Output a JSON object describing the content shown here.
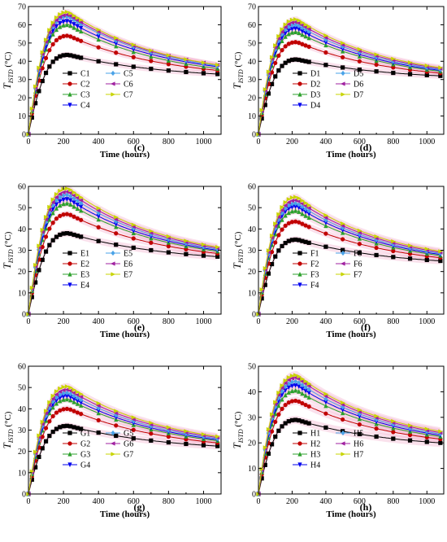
{
  "chart_data": [
    {
      "type": "line",
      "panel": "(c)",
      "xlabel": "Time (hours)",
      "ylabel_main": "T",
      "ylabel_sub": "ISTD",
      "ylabel_unit": " (°C)",
      "xlim": [
        0,
        1100
      ],
      "ylim": [
        0,
        70
      ],
      "xticks": [
        0,
        200,
        400,
        600,
        800,
        1000
      ],
      "yticks": [
        0,
        10,
        20,
        30,
        40,
        50,
        60,
        70
      ],
      "x": [
        0,
        20,
        40,
        60,
        80,
        100,
        120,
        140,
        160,
        180,
        200,
        220,
        240,
        260,
        280,
        300,
        400,
        500,
        600,
        700,
        800,
        900,
        1000,
        1080
      ],
      "series": [
        {
          "name": "C1",
          "peak": 43.5,
          "end": 33
        },
        {
          "name": "C2",
          "peak": 54,
          "end": 35
        },
        {
          "name": "C3",
          "peak": 60,
          "end": 36
        },
        {
          "name": "C4",
          "peak": 62,
          "end": 37
        },
        {
          "name": "C5",
          "peak": 64.5,
          "end": 37.5
        },
        {
          "name": "C6",
          "peak": 65.5,
          "end": 38
        },
        {
          "name": "C7",
          "peak": 67,
          "end": 38
        }
      ]
    },
    {
      "type": "line",
      "panel": "(d)",
      "xlabel": "Time (hours)",
      "ylabel_main": "T",
      "ylabel_sub": "ISTD",
      "ylabel_unit": " (°C)",
      "xlim": [
        0,
        1100
      ],
      "ylim": [
        0,
        70
      ],
      "xticks": [
        0,
        200,
        400,
        600,
        800,
        1000
      ],
      "yticks": [
        0,
        10,
        20,
        30,
        40,
        50,
        60,
        70
      ],
      "x": [
        0,
        20,
        40,
        60,
        80,
        100,
        120,
        140,
        160,
        180,
        200,
        220,
        240,
        260,
        280,
        300,
        400,
        500,
        600,
        700,
        800,
        900,
        1000,
        1080
      ],
      "series": [
        {
          "name": "D1",
          "peak": 41,
          "end": 32
        },
        {
          "name": "D2",
          "peak": 50.5,
          "end": 33.5
        },
        {
          "name": "D3",
          "peak": 56,
          "end": 34.5
        },
        {
          "name": "D4",
          "peak": 58,
          "end": 35
        },
        {
          "name": "D5",
          "peak": 60,
          "end": 35.5
        },
        {
          "name": "D6",
          "peak": 61.5,
          "end": 36
        },
        {
          "name": "D7",
          "peak": 63,
          "end": 36.5
        }
      ]
    },
    {
      "type": "line",
      "panel": "(e)",
      "xlabel": "Time (hours)",
      "ylabel_main": "T",
      "ylabel_sub": "ISTD",
      "ylabel_unit": " (°C)",
      "xlim": [
        0,
        1100
      ],
      "ylim": [
        0,
        60
      ],
      "xticks": [
        0,
        200,
        400,
        600,
        800,
        1000
      ],
      "yticks": [
        0,
        10,
        20,
        30,
        40,
        50,
        60
      ],
      "x": [
        0,
        20,
        40,
        60,
        80,
        100,
        120,
        140,
        160,
        180,
        200,
        220,
        240,
        260,
        280,
        300,
        400,
        500,
        600,
        700,
        800,
        900,
        1000,
        1080
      ],
      "series": [
        {
          "name": "E1",
          "peak": 38,
          "end": 27
        },
        {
          "name": "E2",
          "peak": 47,
          "end": 28.5
        },
        {
          "name": "E3",
          "peak": 52,
          "end": 29.5
        },
        {
          "name": "E4",
          "peak": 54,
          "end": 30
        },
        {
          "name": "E5",
          "peak": 56,
          "end": 30.5
        },
        {
          "name": "E6",
          "peak": 57.5,
          "end": 31
        },
        {
          "name": "E7",
          "peak": 59,
          "end": 31.5
        }
      ]
    },
    {
      "type": "line",
      "panel": "(f)",
      "xlabel": "Time (hours)",
      "ylabel_main": "T",
      "ylabel_sub": "ISTD",
      "ylabel_unit": " (°C)",
      "xlim": [
        0,
        1100
      ],
      "ylim": [
        0,
        60
      ],
      "xticks": [
        0,
        200,
        400,
        600,
        800,
        1000
      ],
      "yticks": [
        0,
        10,
        20,
        30,
        40,
        50,
        60
      ],
      "x": [
        0,
        20,
        40,
        60,
        80,
        100,
        120,
        140,
        160,
        180,
        200,
        220,
        240,
        260,
        280,
        300,
        400,
        500,
        600,
        700,
        800,
        900,
        1000,
        1080
      ],
      "series": [
        {
          "name": "F1",
          "peak": 35,
          "end": 25
        },
        {
          "name": "F2",
          "peak": 43.5,
          "end": 26.5
        },
        {
          "name": "F3",
          "peak": 48.5,
          "end": 27.5
        },
        {
          "name": "F4",
          "peak": 50.5,
          "end": 28
        },
        {
          "name": "F5",
          "peak": 52,
          "end": 28.5
        },
        {
          "name": "F6",
          "peak": 53.5,
          "end": 29
        },
        {
          "name": "F7",
          "peak": 55,
          "end": 29.5
        }
      ]
    },
    {
      "type": "line",
      "panel": "(g)",
      "xlabel": "Time (hours)",
      "ylabel_main": "T",
      "ylabel_sub": "ISTD",
      "ylabel_unit": " (°C)",
      "xlim": [
        0,
        1100
      ],
      "ylim": [
        0,
        60
      ],
      "xticks": [
        0,
        200,
        400,
        600,
        800,
        1000
      ],
      "yticks": [
        0,
        10,
        20,
        30,
        40,
        50,
        60
      ],
      "x": [
        0,
        20,
        40,
        60,
        80,
        100,
        120,
        140,
        160,
        180,
        200,
        220,
        240,
        260,
        280,
        300,
        400,
        500,
        600,
        700,
        800,
        900,
        1000,
        1080
      ],
      "series": [
        {
          "name": "G1",
          "peak": 32,
          "end": 22.5
        },
        {
          "name": "G2",
          "peak": 40,
          "end": 24
        },
        {
          "name": "G3",
          "peak": 44.5,
          "end": 25
        },
        {
          "name": "G4",
          "peak": 46,
          "end": 25.5
        },
        {
          "name": "G5",
          "peak": 47.5,
          "end": 26
        },
        {
          "name": "G6",
          "peak": 49,
          "end": 26.5
        },
        {
          "name": "G7",
          "peak": 50.5,
          "end": 27
        }
      ]
    },
    {
      "type": "line",
      "panel": "(h)",
      "xlabel": "Time (hours)",
      "ylabel_main": "T",
      "ylabel_sub": "ISTD",
      "ylabel_unit": " (°C)",
      "xlim": [
        0,
        1100
      ],
      "ylim": [
        0,
        50
      ],
      "xticks": [
        0,
        200,
        400,
        600,
        800,
        1000
      ],
      "yticks": [
        0,
        10,
        20,
        30,
        40,
        50
      ],
      "x": [
        0,
        20,
        40,
        60,
        80,
        100,
        120,
        140,
        160,
        180,
        200,
        220,
        240,
        260,
        280,
        300,
        400,
        500,
        600,
        700,
        800,
        900,
        1000,
        1080
      ],
      "series": [
        {
          "name": "H1",
          "peak": 29,
          "end": 20
        },
        {
          "name": "H2",
          "peak": 36.5,
          "end": 21.5
        },
        {
          "name": "H3",
          "peak": 40.5,
          "end": 22.5
        },
        {
          "name": "H4",
          "peak": 42.5,
          "end": 23
        },
        {
          "name": "H5",
          "peak": 44,
          "end": 23.5
        },
        {
          "name": "H6",
          "peak": 45.5,
          "end": 24
        },
        {
          "name": "H7",
          "peak": 46.5,
          "end": 24.5
        }
      ]
    }
  ],
  "style": {
    "series_colors": [
      "#000000",
      "#c00000",
      "#2ca02c",
      "#0000ee",
      "#4aa3e8",
      "#a020a0",
      "#c8d400"
    ],
    "series_markers": [
      "square",
      "circle",
      "triangle-up",
      "triangle-down",
      "diamond",
      "triangle-left",
      "triangle-right"
    ],
    "band_color": "#f0a8c8"
  }
}
